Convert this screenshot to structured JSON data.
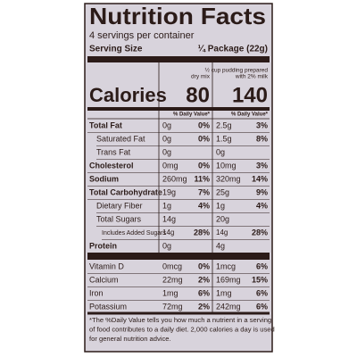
{
  "label": {
    "title": "Nutrition Facts",
    "servings": "4 servings per container",
    "serving_size": {
      "label": "Serving Size",
      "value": "¼ Package (22g)"
    },
    "calories": {
      "label": "Calories",
      "columns": [
        {
          "header": [
            "dry mix"
          ],
          "value": "80"
        },
        {
          "header": [
            "½ cup pudding prepared",
            "with 2% milk"
          ],
          "value": "140"
        }
      ]
    },
    "daily_value_header": "% Daily Value*",
    "rows": [
      {
        "name": "Total Fat",
        "amounts": [
          "0g",
          "2.5g"
        ],
        "dv": [
          "0%",
          "3%"
        ]
      },
      {
        "name": "Saturated Fat",
        "amounts": [
          "0g",
          "1.5g"
        ],
        "dv": [
          "0%",
          "8%"
        ]
      },
      {
        "name": "Trans Fat",
        "amounts": [
          "0g",
          "0g"
        ]
      },
      {
        "name": "Cholesterol",
        "amounts": [
          "0mg",
          "10mg"
        ],
        "dv": [
          "0%",
          "3%"
        ]
      },
      {
        "name": "Sodium",
        "amounts": [
          "260mg",
          "320mg"
        ],
        "dv": [
          "11%",
          "14%"
        ]
      },
      {
        "name": "Total Carbohydrate",
        "amounts": [
          "19g",
          "25g"
        ],
        "dv": [
          "7%",
          "9%"
        ]
      },
      {
        "name": "Dietary Fiber",
        "amounts": [
          "1g",
          "1g"
        ],
        "dv": [
          "4%",
          "4%"
        ]
      },
      {
        "name": "Total Sugars",
        "amounts": [
          "14g",
          "20g"
        ]
      },
      {
        "name": "Includes Added Sugars",
        "amounts": [
          "14g",
          "14g"
        ],
        "dv": [
          "28%",
          "28%"
        ]
      },
      {
        "name": "Protein",
        "amounts": [
          "0g",
          "4g"
        ]
      },
      {
        "name": "Vitamin D",
        "amounts": [
          "0mcg",
          "1mcg"
        ],
        "dv": [
          "0%",
          "6%"
        ]
      },
      {
        "name": "Calcium",
        "amounts": [
          "22mg",
          "169mg"
        ],
        "dv": [
          "2%",
          "15%"
        ]
      },
      {
        "name": "Iron",
        "amounts": [
          "1mg",
          "1mg"
        ],
        "dv": [
          "6%",
          "6%"
        ]
      },
      {
        "name": "Potassium",
        "amounts": [
          "72mg",
          "242mg"
        ],
        "dv": [
          "2%",
          "6%"
        ]
      }
    ],
    "footnote": [
      "*The %Daily Value tells you how much a nutrient in a serving",
      "of food contributes to a daily diet. 2,000 calories a day is used",
      "for general nutrition advice."
    ]
  }
}
